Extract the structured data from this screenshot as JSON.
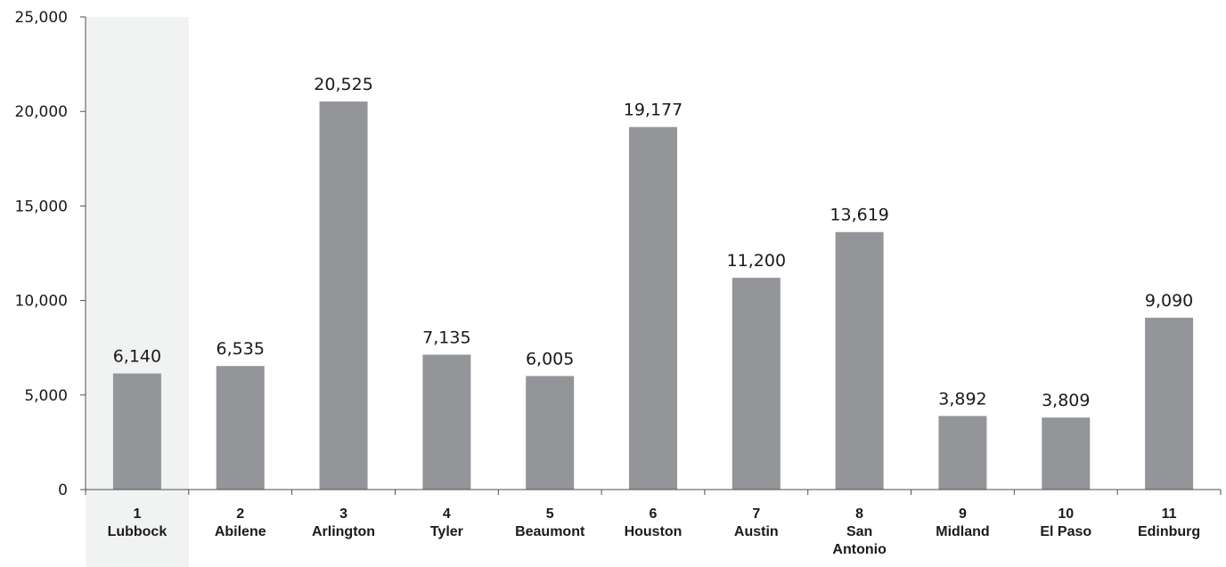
{
  "chart_data": {
    "type": "bar",
    "title": "",
    "xlabel": "",
    "ylabel": "",
    "ylim": [
      0,
      25000
    ],
    "yticks": [
      0,
      5000,
      10000,
      15000,
      20000,
      25000
    ],
    "ytick_labels": [
      "0",
      "5,000",
      "10,000",
      "15,000",
      "20,000",
      "25,000"
    ],
    "grid": false,
    "legend": "none",
    "highlighted_category_index": 0,
    "categories": [
      {
        "number": "1",
        "name": [
          "Lubbock"
        ]
      },
      {
        "number": "2",
        "name": [
          "Abilene"
        ]
      },
      {
        "number": "3",
        "name": [
          "Arlington"
        ]
      },
      {
        "number": "4",
        "name": [
          "Tyler"
        ]
      },
      {
        "number": "5",
        "name": [
          "Beaumont"
        ]
      },
      {
        "number": "6",
        "name": [
          "Houston"
        ]
      },
      {
        "number": "7",
        "name": [
          "Austin"
        ]
      },
      {
        "number": "8",
        "name": [
          "San",
          "Antonio"
        ]
      },
      {
        "number": "9",
        "name": [
          "Midland"
        ]
      },
      {
        "number": "10",
        "name": [
          "El Paso"
        ]
      },
      {
        "number": "11",
        "name": [
          "Edinburg"
        ]
      }
    ],
    "values": [
      6140,
      6535,
      20525,
      7135,
      6005,
      19177,
      11200,
      13619,
      3892,
      3809,
      9090
    ],
    "value_labels": [
      "6,140",
      "6,535",
      "20,525",
      "7,135",
      "6,005",
      "19,177",
      "11,200",
      "13,619",
      "3,892",
      "3,809",
      "9,090"
    ],
    "colors": {
      "bar": "#939598",
      "highlight_band": "#f1f2f2",
      "axis": "#4d4d4d",
      "text": "#1a1a1a"
    }
  }
}
